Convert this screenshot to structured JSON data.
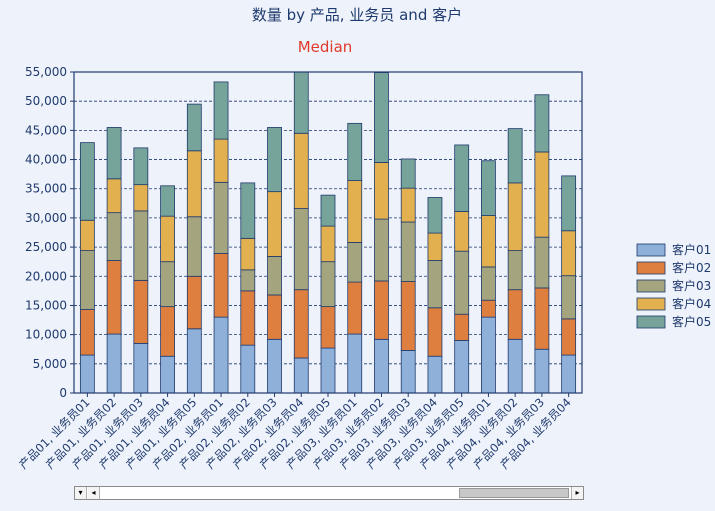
{
  "chart_data": {
    "type": "bar",
    "stacked": true,
    "title": "数量 by 产品, 业务员 and 客户",
    "subtitle": "Median",
    "categories": [
      "产品01, 业务员01",
      "产品01, 业务员02",
      "产品01, 业务员03",
      "产品01, 业务员04",
      "产品01, 业务员05",
      "产品02, 业务员01",
      "产品02, 业务员02",
      "产品02, 业务员03",
      "产品02, 业务员04",
      "产品02, 业务员05",
      "产品03, 业务员01",
      "产品03, 业务员02",
      "产品03, 业务员03",
      "产品03, 业务员04",
      "产品03, 业务员05",
      "产品04, 业务员01",
      "产品04, 业务员02",
      "产品04, 业务员03",
      "产品04, 业务员04"
    ],
    "series": [
      {
        "name": "客户01",
        "color": "#8eb0d9",
        "values": [
          6500,
          10100,
          8500,
          6300,
          11000,
          13000,
          8200,
          9200,
          6000,
          7700,
          10100,
          9200,
          7300,
          6300,
          9000,
          13000,
          9200,
          7500,
          6500
        ]
      },
      {
        "name": "客户02",
        "color": "#de7f3f",
        "values": [
          7800,
          12600,
          10800,
          8500,
          9000,
          10900,
          9300,
          7600,
          11700,
          7100,
          8900,
          10000,
          11800,
          8300,
          4500,
          2900,
          8500,
          10500,
          6200
        ]
      },
      {
        "name": "客户03",
        "color": "#a4a57e",
        "values": [
          10100,
          8200,
          11900,
          7700,
          10200,
          12200,
          3600,
          6600,
          13900,
          7700,
          6800,
          10600,
          10200,
          8100,
          10800,
          5700,
          6700,
          8700,
          7400
        ]
      },
      {
        "name": "客户04",
        "color": "#e2b04e",
        "values": [
          5200,
          5800,
          4500,
          7800,
          11300,
          7400,
          5400,
          11100,
          12900,
          6100,
          10600,
          9700,
          5800,
          4700,
          6800,
          8800,
          11600,
          14600,
          7700
        ]
      },
      {
        "name": "客户05",
        "color": "#76a39a",
        "values": [
          13300,
          8800,
          6300,
          5200,
          8000,
          9800,
          9500,
          11000,
          10500,
          5300,
          9800,
          15400,
          5000,
          6100,
          11400,
          9400,
          9300,
          9800,
          9400
        ]
      }
    ],
    "ylim": [
      0,
      55000
    ],
    "yticks": [
      "0",
      "5,000",
      "10,000",
      "15,000",
      "20,000",
      "25,000",
      "30,000",
      "35,000",
      "40,000",
      "45,000",
      "50,000",
      "55,000"
    ],
    "ystep": 5000,
    "grid": true,
    "legend_position": "right"
  },
  "scrollbar": {
    "left_arrow": "◂",
    "right_arrow": "▸",
    "dropdown_arrow": "▾"
  }
}
